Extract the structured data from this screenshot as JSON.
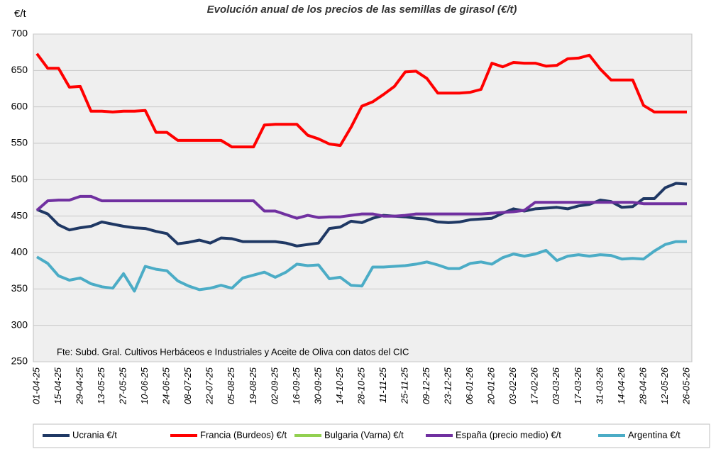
{
  "chart_data": {
    "type": "line",
    "title": "Evolución anual de los precios de las semillas de girasol (€/t)",
    "y_label": "€/t",
    "annotation": "Fte: Subd. Gral. Cultivos Herbáceos e Industriales y Aceite de Oliva con datos del CIC",
    "categories": [
      "01-04-25",
      null,
      "15-04-25",
      null,
      "29-04-25",
      null,
      "13-05-25",
      null,
      "27-05-25",
      null,
      "10-06-25",
      null,
      "24-06-25",
      null,
      "08-07-25",
      null,
      "22-07-25",
      null,
      "05-08-25",
      null,
      "19-08-25",
      null,
      "02-09-25",
      null,
      "16-09-25",
      null,
      "30-09-25",
      null,
      "14-10-25",
      null,
      "28-10-25",
      null,
      "11-11-25",
      null,
      "25-11-25",
      null,
      "09-12-25",
      null,
      "23-12-25",
      null,
      "06-01-26",
      null,
      "20-01-26",
      null,
      "03-02-26",
      null,
      "17-02-26",
      null,
      "03-03-26",
      null,
      "17-03-26",
      null,
      "31-03-26",
      null,
      "14-04-26",
      null,
      "28-04-26",
      null,
      "12-05-26",
      null,
      "26-05-26"
    ],
    "series": [
      {
        "name": "Ucrania €/t",
        "color": "#1f3864",
        "values": [
          459,
          453,
          438,
          431,
          434,
          436,
          442,
          439,
          436,
          434,
          433,
          429,
          426,
          412,
          414,
          417,
          413,
          420,
          419,
          415,
          415,
          415,
          415,
          413,
          409,
          411,
          413,
          433,
          435,
          443,
          441,
          447,
          451,
          450,
          449,
          447,
          446,
          442,
          441,
          442,
          445,
          446,
          447,
          454,
          460,
          457,
          460,
          461,
          462,
          460,
          464,
          466,
          472,
          470,
          462,
          463,
          474,
          474,
          489,
          495,
          494
        ]
      },
      {
        "name": "Francia (Burdeos) €/t",
        "color": "#ff0000",
        "values": [
          673,
          653,
          653,
          627,
          628,
          594,
          594,
          593,
          594,
          594,
          595,
          565,
          565,
          554,
          554,
          554,
          554,
          554,
          545,
          545,
          545,
          575,
          576,
          576,
          576,
          561,
          556,
          549,
          547,
          572,
          601,
          607,
          617,
          628,
          648,
          649,
          639,
          619,
          619,
          619,
          620,
          624,
          660,
          655,
          661,
          660,
          660,
          656,
          657,
          666,
          667,
          671,
          652,
          637,
          637,
          637,
          602,
          593,
          593,
          593,
          593
        ]
      },
      {
        "name": "Bulgaria (Varna) €/t",
        "color": "#92d050",
        "values": [
          null,
          null,
          null,
          null,
          null,
          null,
          null,
          null,
          null,
          null,
          null,
          null,
          null,
          null,
          null,
          null,
          null,
          null,
          null,
          null,
          null,
          null,
          null,
          null,
          null,
          null,
          null,
          null,
          null,
          null,
          null,
          null,
          null,
          null,
          null,
          null,
          null,
          null,
          null,
          null,
          null,
          null,
          null,
          null,
          null,
          null,
          null,
          null,
          null,
          null,
          null,
          null,
          null,
          null,
          null,
          null,
          null,
          null,
          null,
          null,
          null
        ]
      },
      {
        "name": "España (precio medio) €/t",
        "color": "#7030a0",
        "values": [
          458,
          471,
          472,
          472,
          477,
          477,
          471,
          471,
          471,
          471,
          471,
          471,
          471,
          471,
          471,
          471,
          471,
          471,
          471,
          471,
          471,
          457,
          457,
          452,
          447,
          451,
          448,
          449,
          449,
          451,
          453,
          453,
          450,
          450,
          451,
          453,
          453,
          453,
          453,
          453,
          453,
          453,
          454,
          455,
          456,
          458,
          469,
          469,
          469,
          469,
          469,
          469,
          469,
          469,
          469,
          469,
          467,
          467,
          467,
          467,
          467
        ]
      },
      {
        "name": "Argentina €/t",
        "color": "#4bacc6",
        "values": [
          394,
          385,
          368,
          362,
          365,
          357,
          353,
          351,
          371,
          347,
          381,
          377,
          375,
          361,
          354,
          349,
          351,
          355,
          351,
          365,
          369,
          373,
          366,
          373,
          384,
          382,
          383,
          364,
          366,
          355,
          354,
          380,
          380,
          381,
          382,
          384,
          387,
          383,
          378,
          378,
          385,
          387,
          384,
          393,
          398,
          395,
          398,
          403,
          389,
          395,
          397,
          395,
          397,
          396,
          391,
          392,
          391,
          402,
          411,
          415,
          415
        ]
      }
    ],
    "ylim": [
      250,
      700
    ],
    "yticks": [
      250,
      300,
      350,
      400,
      450,
      500,
      550,
      600,
      650,
      700
    ],
    "grid": true,
    "legend": "bottom"
  }
}
